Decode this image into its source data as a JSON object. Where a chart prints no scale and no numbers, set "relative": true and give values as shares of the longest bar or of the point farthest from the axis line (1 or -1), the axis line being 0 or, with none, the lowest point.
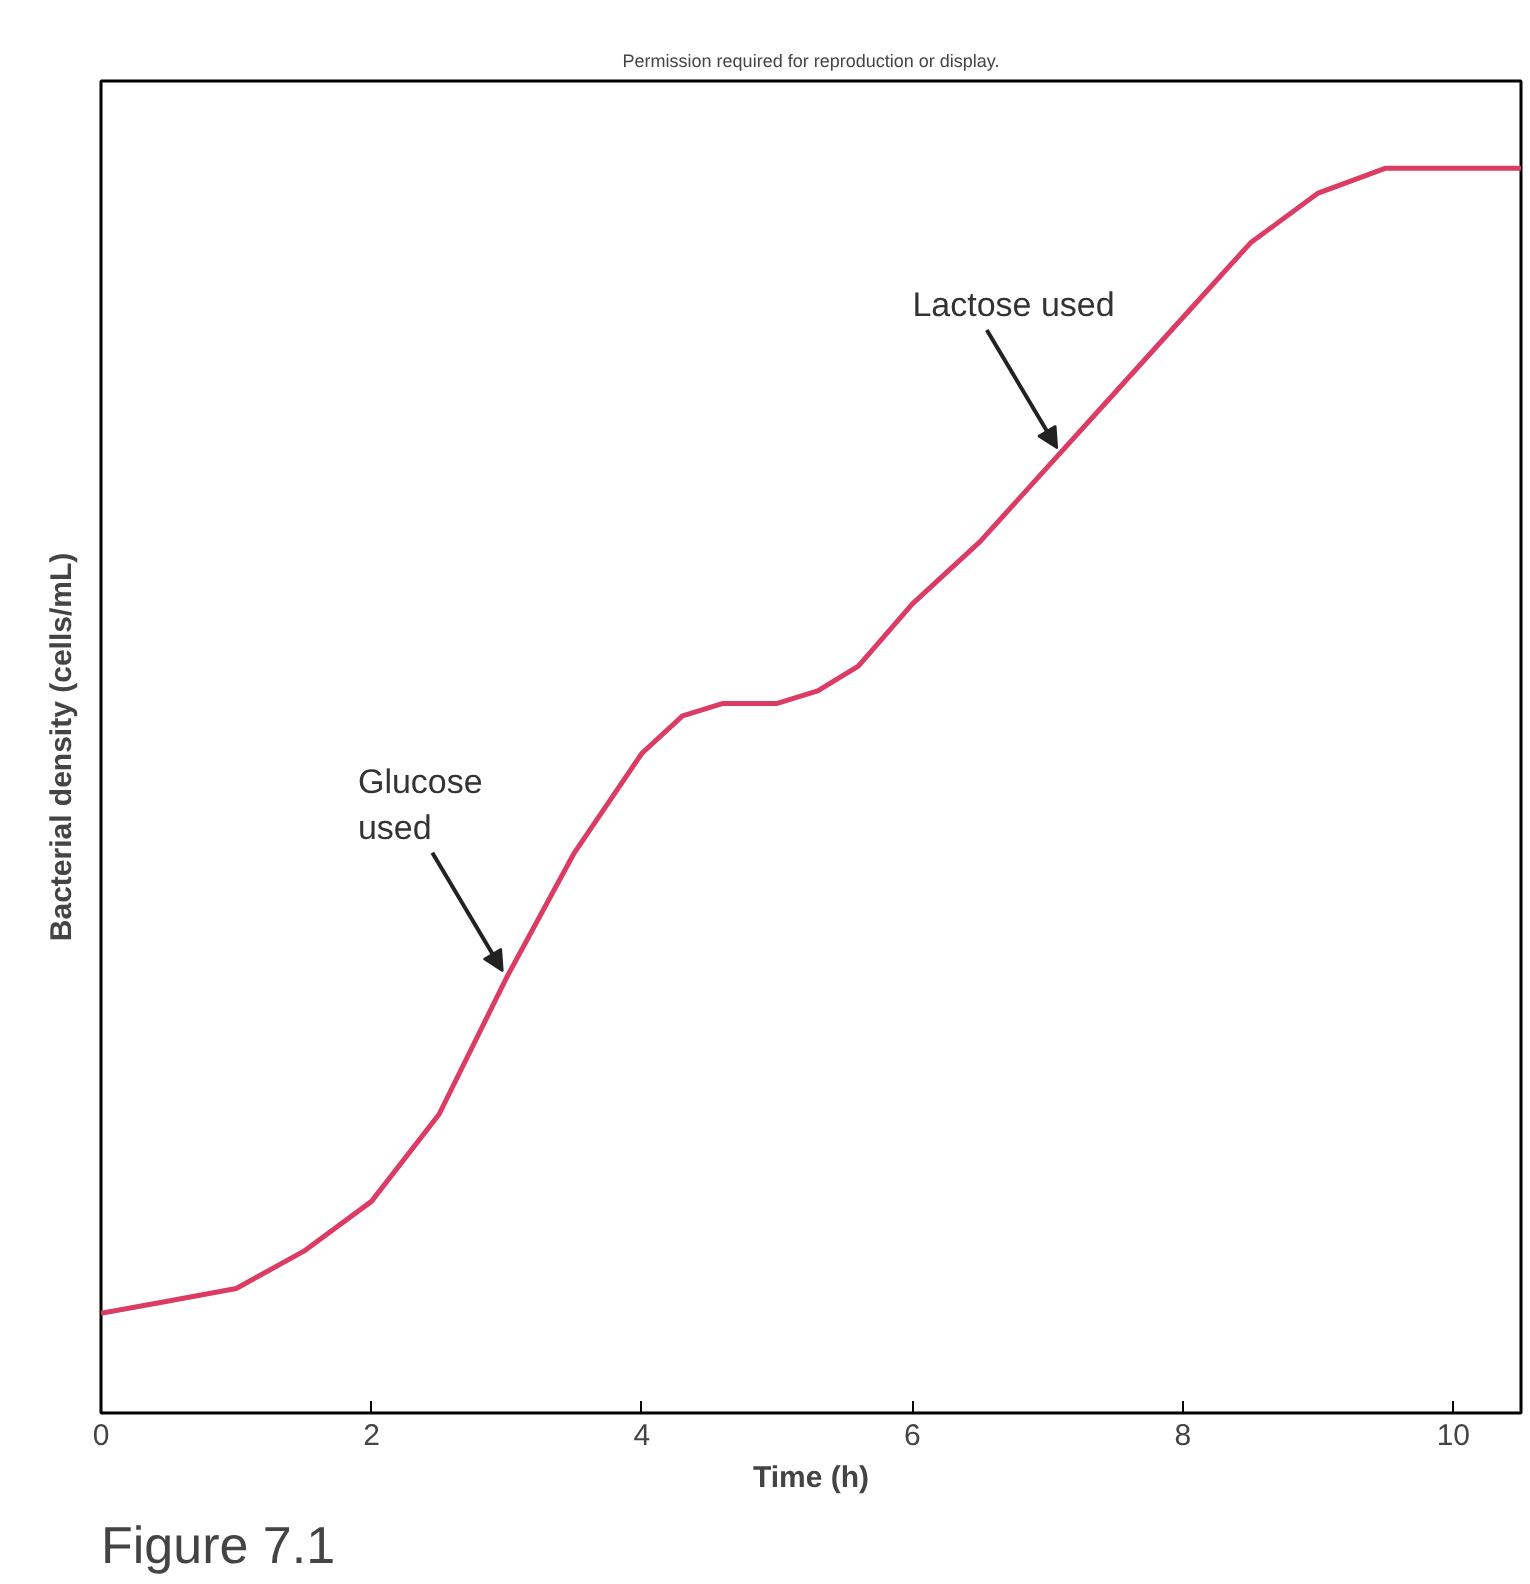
{
  "chart_data": {
    "type": "line",
    "relative": true,
    "xlabel": "Time (h)",
    "ylabel": "Bacterial density (cells/mL)",
    "x": [
      0,
      0.5,
      1,
      1.5,
      2,
      2.5,
      3,
      3.5,
      4,
      4.3,
      4.6,
      5,
      5.3,
      5.6,
      6,
      6.5,
      7,
      7.5,
      8,
      8.5,
      9,
      9.5,
      10,
      10.5
    ],
    "series": [
      {
        "color": "#dc3c64",
        "values": [
          0.08,
          0.09,
          0.1,
          0.13,
          0.17,
          0.24,
          0.35,
          0.45,
          0.53,
          0.56,
          0.57,
          0.57,
          0.58,
          0.6,
          0.65,
          0.7,
          0.76,
          0.82,
          0.88,
          0.94,
          0.98,
          1.0,
          1.0,
          1.0
        ]
      }
    ],
    "xlim": [
      0,
      10.5
    ],
    "xticks": [
      0,
      2,
      4,
      6,
      8,
      10
    ],
    "grid": false,
    "annotations": [
      "Permission required for reproduction or display.",
      {
        "text": "Glucose\nused",
        "x": 3.0,
        "y": 0.35
      },
      {
        "text": "Lactose used",
        "x": 7.1,
        "y": 0.77
      },
      "Figure 7.1"
    ]
  }
}
